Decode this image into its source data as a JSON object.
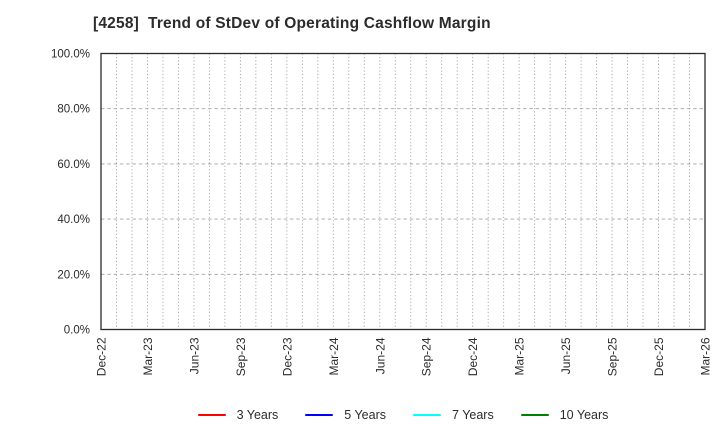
{
  "chart_data": {
    "type": "line",
    "title": "[4258]  Trend of StDev of Operating Cashflow Margin",
    "x_tick_labels": [
      "Dec-22",
      "Mar-23",
      "Jun-23",
      "Sep-23",
      "Dec-23",
      "Mar-24",
      "Jun-24",
      "Sep-24",
      "Dec-24",
      "Mar-25",
      "Jun-25",
      "Sep-25",
      "Dec-25",
      "Mar-26"
    ],
    "minor_gridlines_per_label_interval": 3,
    "y_tick_labels": [
      "0.0%",
      "20.0%",
      "40.0%",
      "60.0%",
      "80.0%",
      "100.0%"
    ],
    "ylim": [
      0,
      100
    ],
    "grid": true,
    "legend_position": "bottom-center",
    "series": [
      {
        "name": "3 Years",
        "color": "#ff0000",
        "values": []
      },
      {
        "name": "5 Years",
        "color": "#0000ff",
        "values": []
      },
      {
        "name": "7 Years",
        "color": "#00ffff",
        "values": []
      },
      {
        "name": "10 Years",
        "color": "#008000",
        "values": []
      }
    ],
    "colors": {
      "axis": "#2b2b2b",
      "grid": "#a3a3a3",
      "text": "#2b2b2b",
      "background": "#ffffff"
    }
  }
}
